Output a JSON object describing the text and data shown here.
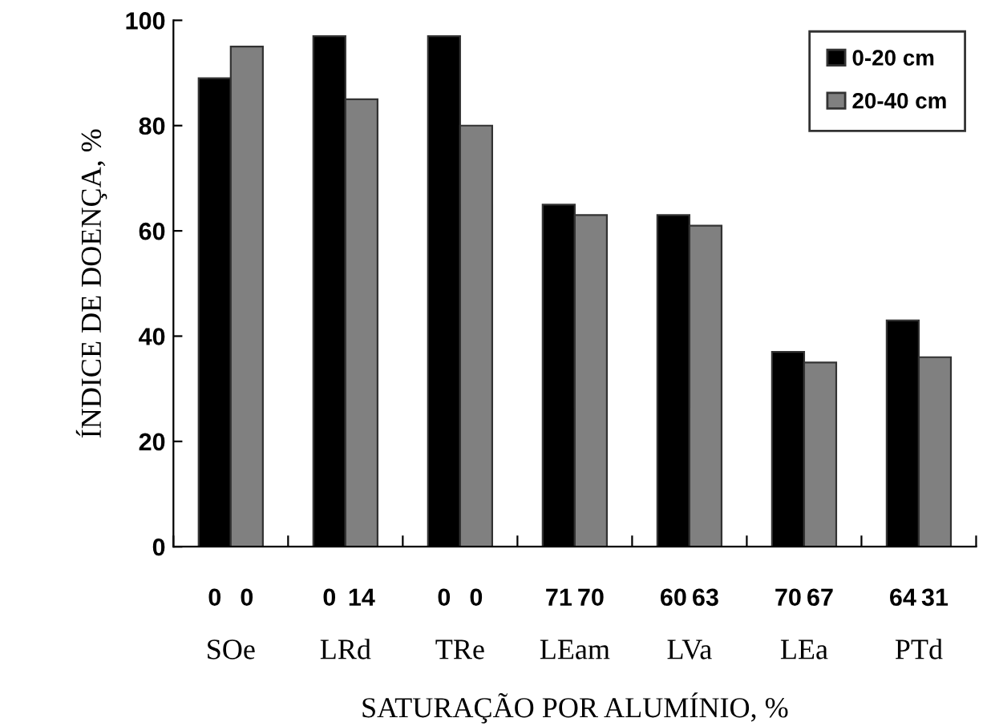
{
  "chart_data": {
    "type": "bar",
    "xlabel": "SATURAÇÃO POR ALUMÍNIO, %",
    "ylabel": "ÍNDICE DE DOENÇA, %",
    "categories": [
      "SOe",
      "LRd",
      "TRe",
      "LEam",
      "LVa",
      "LEa",
      "PTd"
    ],
    "series": [
      {
        "name": "0-20 cm",
        "color": "#000000",
        "values": [
          89,
          97,
          97,
          65,
          63,
          37,
          43
        ]
      },
      {
        "name": "20-40 cm",
        "color": "#808080",
        "values": [
          95,
          85,
          80,
          63,
          61,
          35,
          36
        ]
      }
    ],
    "ylim": [
      0,
      100
    ],
    "yticks": [
      0,
      20,
      40,
      60,
      80,
      100
    ],
    "grid": false,
    "legend": "top right",
    "annotations": [
      "0",
      "0",
      "0",
      "14",
      "0",
      "0",
      "71",
      "70",
      "60",
      "63",
      "70",
      "67",
      "64",
      "31"
    ]
  }
}
